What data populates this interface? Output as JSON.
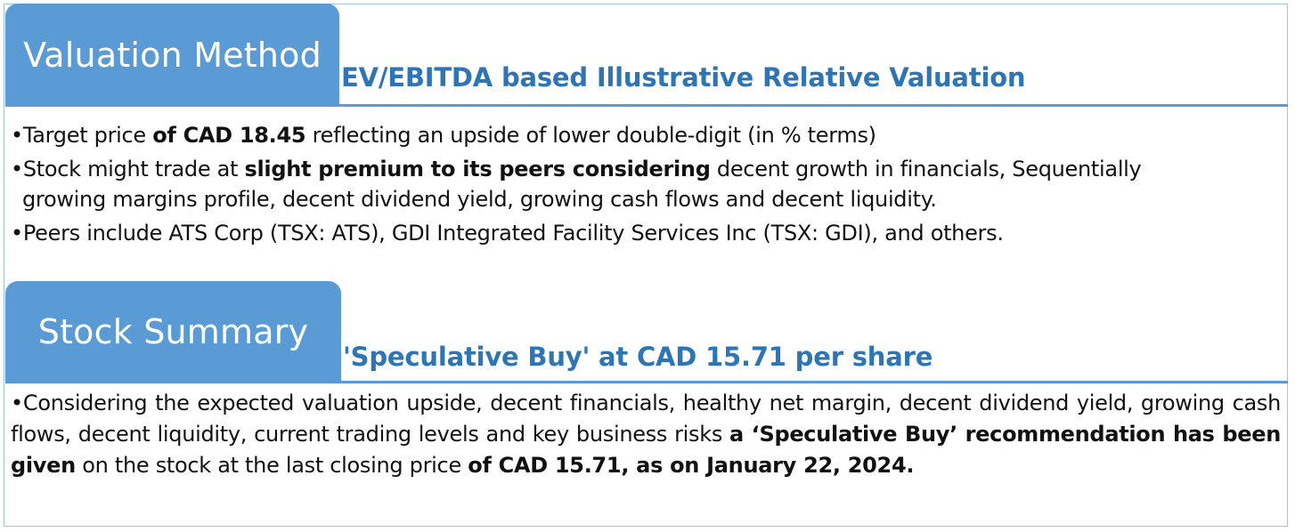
{
  "valuation": {
    "tab_label": "Valuation Method",
    "subtitle": "EV/EBITDA based Illustrative Relative Valuation",
    "bullet1": {
      "p1": "•Target price ",
      "b1": "of CAD 18.45",
      "p2": " reflecting an upside of lower double-digit (in % terms)"
    },
    "bullet2": {
      "p1": "•Stock might trade at ",
      "b1": "slight premium to its peers considering",
      "p2": " decent growth in financials,  Sequentially",
      "line2": "growing margins profile, decent dividend yield, growing cash flows and decent liquidity."
    },
    "bullet3": "•Peers include ATS Corp (TSX: ATS), GDI Integrated Facility Services Inc (TSX: GDI), and others."
  },
  "summary": {
    "tab_label": "Stock Summary",
    "subtitle": "'Speculative Buy' at CAD 15.71 per share",
    "paragraph": {
      "p1": "•Considering the expected valuation upside, decent financials,  healthy net margin, decent dividend yield, growing cash flows, decent liquidity, current trading levels and key business risks ",
      "b1": "a ‘Speculative Buy’ recommendation has been given",
      "p2": " on the stock at the last closing price ",
      "b2": "of CAD 15.71, as on January 22, 2024."
    }
  },
  "colors": {
    "tab_fill": "#5b9bd5",
    "subtitle_text": "#2e75b6",
    "frame_border": "#9dc3e6"
  }
}
